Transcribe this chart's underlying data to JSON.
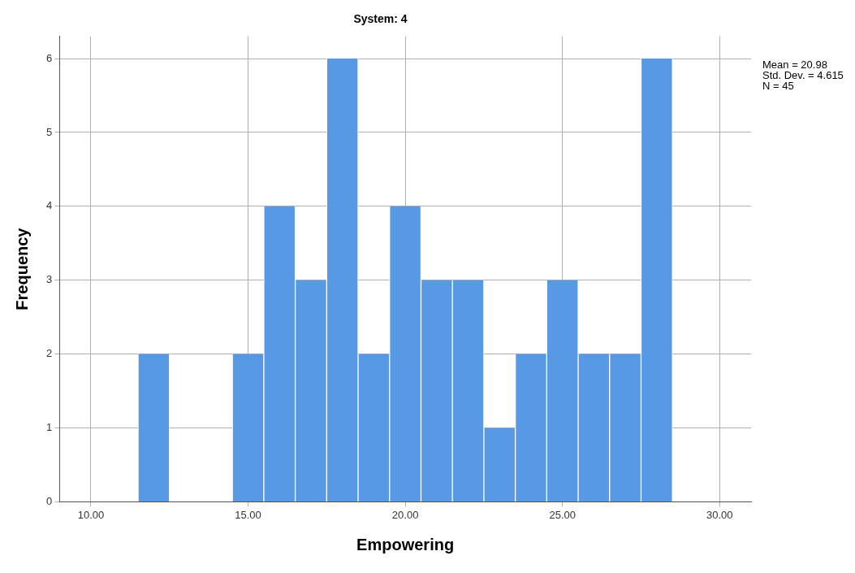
{
  "chart_data": {
    "type": "histogram",
    "title": "System: 4",
    "xlabel": "Empowering",
    "ylabel": "Frequency",
    "bins": [
      11.5,
      12.5,
      13.5,
      14.5,
      15.5,
      16.5,
      17.5,
      18.5,
      19.5,
      20.5,
      21.5,
      22.5,
      23.5,
      24.5,
      25.5,
      26.5,
      27.5,
      28.5
    ],
    "values": [
      2,
      0,
      0,
      2,
      4,
      3,
      6,
      2,
      4,
      3,
      3,
      1,
      2,
      3,
      2,
      2,
      6
    ],
    "color": "#5799e4",
    "xlim": [
      9,
      31
    ],
    "xticks": [
      {
        "value": 10,
        "label": "10.00"
      },
      {
        "value": 15,
        "label": "15.00"
      },
      {
        "value": 20,
        "label": "20.00"
      },
      {
        "value": 25,
        "label": "25.00"
      },
      {
        "value": 30,
        "label": "30.00"
      }
    ],
    "ylim": [
      0,
      6.3
    ],
    "yticks": [
      0,
      1,
      2,
      3,
      4,
      5,
      6
    ],
    "grid": true,
    "legend": false,
    "annotations": [
      "Mean = 20.98",
      "Std. Dev. = 4.615",
      "N = 45"
    ]
  }
}
